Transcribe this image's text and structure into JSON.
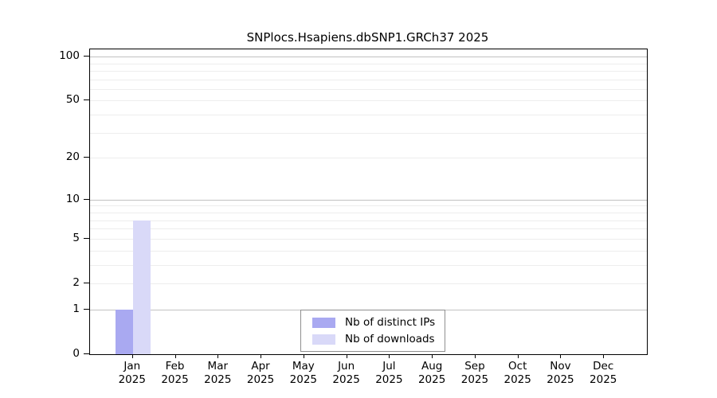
{
  "chart_data": {
    "type": "bar",
    "title": "SNPlocs.Hsapiens.dbSNP1.GRCh37 2025",
    "categories": [
      "Jan",
      "Feb",
      "Mar",
      "Apr",
      "May",
      "Jun",
      "Jul",
      "Aug",
      "Sep",
      "Oct",
      "Nov",
      "Dec"
    ],
    "category_year": "2025",
    "series": [
      {
        "name": "Nb of distinct IPs",
        "color": "#a9a9f1",
        "values": [
          1,
          0,
          0,
          0,
          0,
          0,
          0,
          0,
          0,
          0,
          0,
          0
        ]
      },
      {
        "name": "Nb of downloads",
        "color": "#d9d9f8",
        "values": [
          7,
          0,
          0,
          0,
          0,
          0,
          0,
          0,
          0,
          0,
          0,
          0
        ]
      }
    ],
    "xlabel": "",
    "ylabel": "",
    "y_scale": "log10(1+y)",
    "ylim": [
      0,
      112
    ],
    "y_ticks": [
      0,
      1,
      2,
      5,
      10,
      20,
      50,
      100
    ],
    "grid": {
      "minor_values": [
        2,
        3,
        4,
        5,
        6,
        7,
        8,
        9,
        20,
        30,
        40,
        50,
        60,
        70,
        80,
        90
      ],
      "major_values": [
        1,
        10,
        100
      ],
      "minor_color": "#ededed",
      "major_color": "#c2c2c2"
    },
    "legend_position": "inside-bottom-center",
    "axis_color": "#000000",
    "background_color": "#ffffff"
  }
}
